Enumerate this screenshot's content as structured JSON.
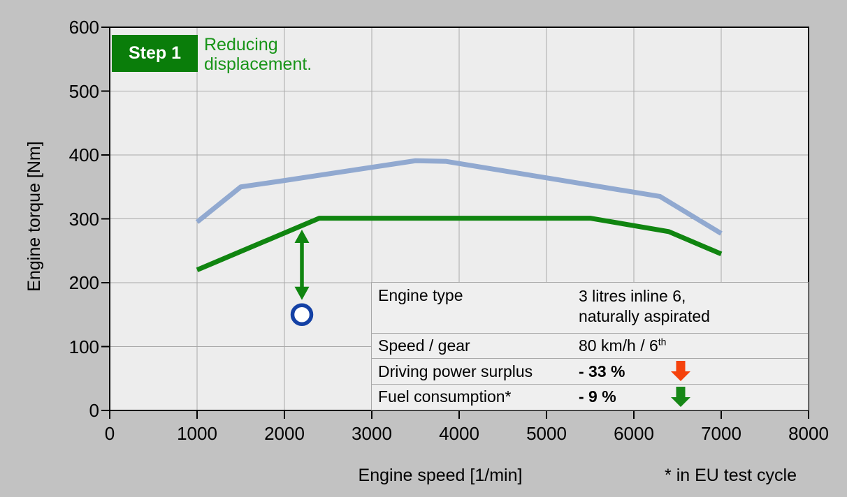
{
  "colors": {
    "outer_background": "#c2c2c2",
    "plot_background": "#ededed",
    "gridline": "#a9a9a9",
    "axis_frame": "#000000",
    "blue_curve": "#91a9d0",
    "green_curve": "#108510",
    "step_box_green": "#0a7d0a",
    "step_text_green": "#189418",
    "red_arrow": "#f5420c",
    "green_arrow": "#178717",
    "circle_stroke": "#1441a5",
    "circle_fill": "#ffffff"
  },
  "step_banner": {
    "label": "Step 1",
    "description": "Reducing\ndisplacement."
  },
  "chart_data": {
    "type": "line",
    "title": "",
    "xlabel": "Engine speed [1/min]",
    "ylabel": "Engine torque [Nm]",
    "xlim": [
      0,
      8000
    ],
    "ylim": [
      0,
      600
    ],
    "xticks": [
      0,
      1000,
      2000,
      3000,
      4000,
      5000,
      6000,
      7000,
      8000
    ],
    "yticks": [
      0,
      100,
      200,
      300,
      400,
      500,
      600
    ],
    "grid": true,
    "legend": "none",
    "series": [
      {
        "name": "blue_curve",
        "color": "#91a9d0",
        "stroke_width": 7,
        "points": [
          [
            1000,
            295
          ],
          [
            1500,
            350
          ],
          [
            2000,
            360
          ],
          [
            3500,
            391
          ],
          [
            3850,
            390
          ],
          [
            6300,
            335
          ],
          [
            7000,
            277
          ]
        ]
      },
      {
        "name": "green_curve",
        "color": "#108510",
        "stroke_width": 7,
        "points": [
          [
            1000,
            220
          ],
          [
            2400,
            301
          ],
          [
            5500,
            301
          ],
          [
            6400,
            280
          ],
          [
            7000,
            245
          ]
        ]
      }
    ],
    "annotations": {
      "torque_drop_double_arrow": {
        "x_rpm": 2200,
        "from_torque": 283,
        "to_torque": 173,
        "color": "#108510"
      },
      "operating_point_circle": {
        "x_rpm": 2200,
        "torque": 150,
        "stroke": "#1441a5",
        "fill": "#ffffff"
      }
    }
  },
  "info_table": {
    "rows": [
      {
        "label": "Engine type",
        "value": "3 litres inline 6,\nnaturally aspirated"
      },
      {
        "label": "Speed / gear",
        "value": "80 km/h / 6",
        "value_sup": "th"
      },
      {
        "label": "Driving power surplus",
        "value": "- 33 %",
        "arrow": "red"
      },
      {
        "label": "Fuel consumption*",
        "value": "- 9 %",
        "arrow": "green"
      }
    ],
    "arrow_colors": {
      "red": "#f5420c",
      "green": "#178717"
    }
  },
  "footnote": "* in EU test cycle"
}
